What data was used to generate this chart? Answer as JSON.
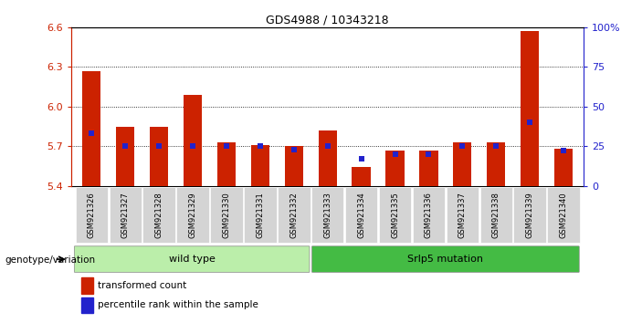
{
  "title": "GDS4988 / 10343218",
  "samples": [
    "GSM921326",
    "GSM921327",
    "GSM921328",
    "GSM921329",
    "GSM921330",
    "GSM921331",
    "GSM921332",
    "GSM921333",
    "GSM921334",
    "GSM921335",
    "GSM921336",
    "GSM921337",
    "GSM921338",
    "GSM921339",
    "GSM921340"
  ],
  "transformed_count": [
    6.27,
    5.85,
    5.85,
    6.09,
    5.73,
    5.71,
    5.7,
    5.82,
    5.54,
    5.67,
    5.67,
    5.73,
    5.73,
    6.57,
    5.68
  ],
  "percentile_rank": [
    33,
    25,
    25,
    25,
    25,
    25,
    23,
    25,
    17,
    20,
    20,
    25,
    25,
    40,
    22
  ],
  "ymin": 5.4,
  "ymax": 6.6,
  "yticks": [
    5.4,
    5.7,
    6.0,
    6.3,
    6.6
  ],
  "right_yticks": [
    0,
    25,
    50,
    75,
    100
  ],
  "right_yticklabels": [
    "0",
    "25",
    "50",
    "75",
    "100%"
  ],
  "bar_color": "#cc2200",
  "blue_color": "#2222cc",
  "wild_type_color": "#bbeeaa",
  "mutation_color": "#44bb44",
  "wild_type_label": "wild type",
  "mutation_label": "Srlp5 mutation",
  "wild_type_count": 7,
  "mutation_count": 8,
  "legend_red": "transformed count",
  "legend_blue": "percentile rank within the sample",
  "xlabel_left": "genotype/variation",
  "bar_width": 0.55
}
